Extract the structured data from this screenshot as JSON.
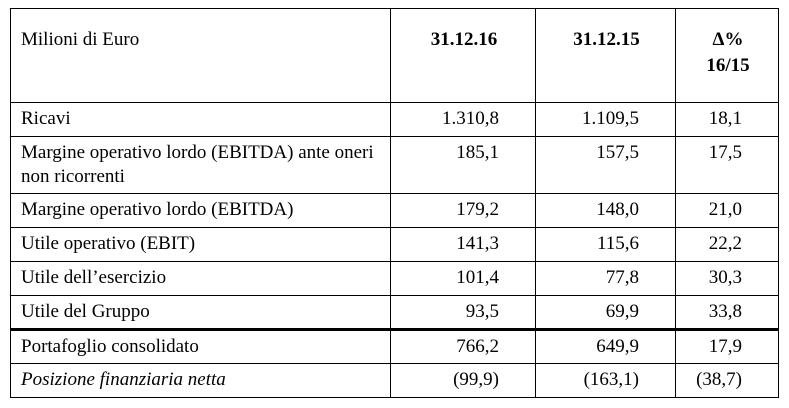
{
  "table": {
    "header": [
      "Milioni di Euro",
      "31.12.16",
      "31.12.15",
      "Δ%\n16/15"
    ],
    "rows": [
      [
        "Ricavi",
        "1.310,8",
        "1.109,5",
        "18,1"
      ],
      [
        "Margine operativo lordo (EBITDA) ante oneri non ricorrenti",
        "185,1",
        "157,5",
        "17,5"
      ],
      [
        "Margine operativo lordo (EBITDA)",
        "179,2",
        "148,0",
        "21,0"
      ],
      [
        "Utile operativo (EBIT)",
        "141,3",
        "115,6",
        "22,2"
      ],
      [
        "Utile dell’esercizio",
        "101,4",
        "77,8",
        "30,3"
      ],
      [
        "Utile del Gruppo",
        "93,5",
        "69,9",
        "33,8"
      ],
      [
        "Portafoglio consolidato",
        "766,2",
        "649,9",
        "17,9"
      ],
      [
        "Posizione finanziaria netta",
        "(99,9)",
        "(163,1)",
        "(38,7)"
      ]
    ]
  }
}
